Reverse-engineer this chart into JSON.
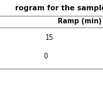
{
  "title": "rogram for the sample",
  "col_header": "Ramp (min)",
  "rows": [
    "15",
    "0"
  ],
  "bg_color": "#ffffff",
  "line_color": "#555555",
  "header_fontsize": 7.0,
  "data_fontsize": 7.0,
  "title_fontsize": 7.5
}
